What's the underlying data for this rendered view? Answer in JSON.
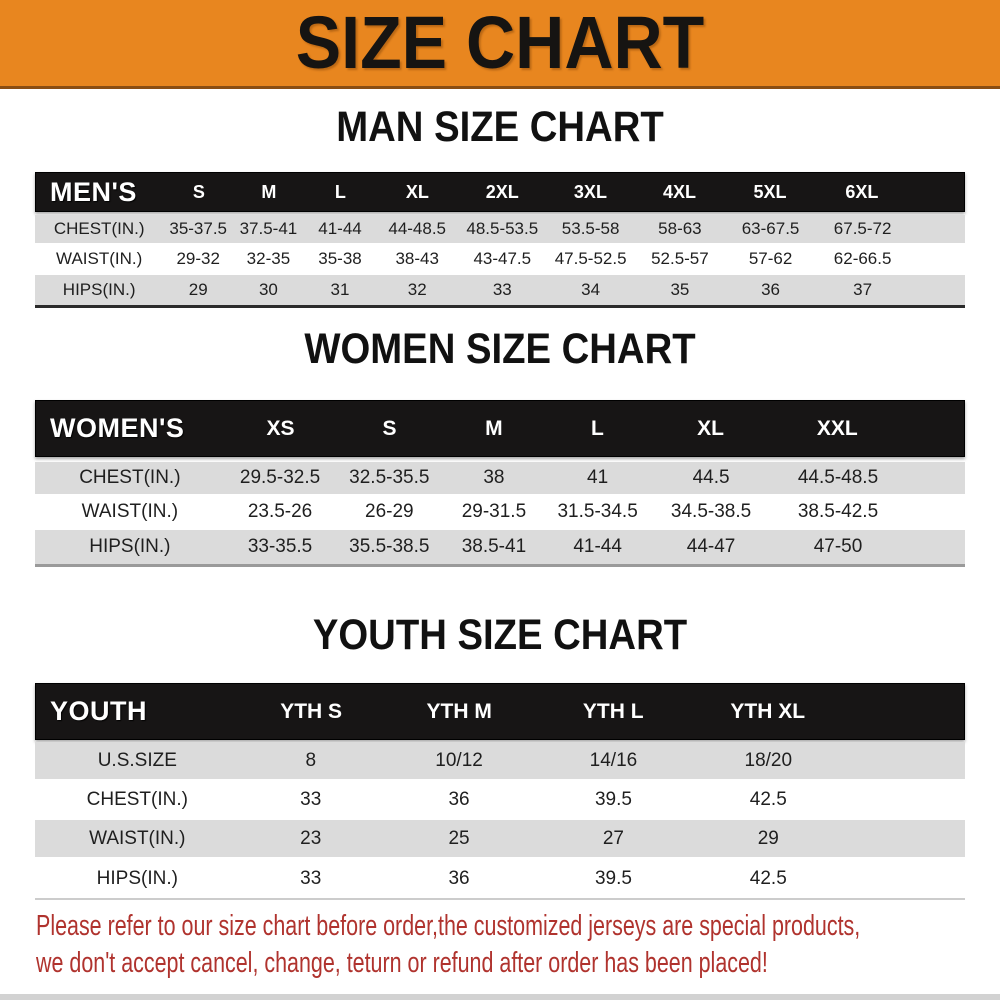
{
  "banner": {
    "title": "SIZE CHART",
    "bg_color": "#E8861F",
    "text_color": "#161412"
  },
  "chart_data": [
    {
      "type": "table",
      "title": "MAN SIZE CHART",
      "corner_label": "MEN'S",
      "columns": [
        "S",
        "M",
        "L",
        "XL",
        "2XL",
        "3XL",
        "4XL",
        "5XL",
        "6XL"
      ],
      "rows": [
        {
          "label": "CHEST(IN.)",
          "values": [
            "35-37.5",
            "37.5-41",
            "41-44",
            "44-48.5",
            "48.5-53.5",
            "53.5-58",
            "58-63",
            "63-67.5",
            "67.5-72"
          ]
        },
        {
          "label": "WAIST(IN.)",
          "values": [
            "29-32",
            "32-35",
            "35-38",
            "38-43",
            "43-47.5",
            "47.5-52.5",
            "52.5-57",
            "57-62",
            "62-66.5"
          ]
        },
        {
          "label": "HIPS(IN.)",
          "values": [
            "29",
            "30",
            "31",
            "32",
            "33",
            "34",
            "35",
            "36",
            "37"
          ]
        }
      ]
    },
    {
      "type": "table",
      "title": "WOMEN SIZE CHART",
      "corner_label": "WOMEN'S",
      "columns": [
        "XS",
        "S",
        "M",
        "L",
        "XL",
        "XXL"
      ],
      "rows": [
        {
          "label": "CHEST(IN.)",
          "values": [
            "29.5-32.5",
            "32.5-35.5",
            "38",
            "41",
            "44.5",
            "44.5-48.5"
          ]
        },
        {
          "label": "WAIST(IN.)",
          "values": [
            "23.5-26",
            "26-29",
            "29-31.5",
            "31.5-34.5",
            "34.5-38.5",
            "38.5-42.5"
          ]
        },
        {
          "label": "HIPS(IN.)",
          "values": [
            "33-35.5",
            "35.5-38.5",
            "38.5-41",
            "41-44",
            "44-47",
            "47-50"
          ]
        }
      ]
    },
    {
      "type": "table",
      "title": "YOUTH SIZE CHART",
      "corner_label": "YOUTH",
      "columns": [
        "YTH S",
        "YTH M",
        "YTH L",
        "YTH XL"
      ],
      "rows": [
        {
          "label": "U.S.SIZE",
          "values": [
            "8",
            "10/12",
            "14/16",
            "18/20"
          ]
        },
        {
          "label": "CHEST(IN.)",
          "values": [
            "33",
            "36",
            "39.5",
            "42.5"
          ]
        },
        {
          "label": "WAIST(IN.)",
          "values": [
            "23",
            "25",
            "27",
            "29"
          ]
        },
        {
          "label": "HIPS(IN.)",
          "values": [
            "33",
            "36",
            "39.5",
            "42.5"
          ]
        }
      ]
    }
  ],
  "footer": {
    "line1": "Please refer to our size chart before order,the customized jerseys are special products,",
    "line2": "we don't accept cancel, change, teturn or refund after order has been placed!",
    "text_color": "#B0332E"
  },
  "colors": {
    "table_header_bar": "#171515",
    "row_stripe_gray": "#DBDBDB",
    "heading_text": "#111111"
  }
}
